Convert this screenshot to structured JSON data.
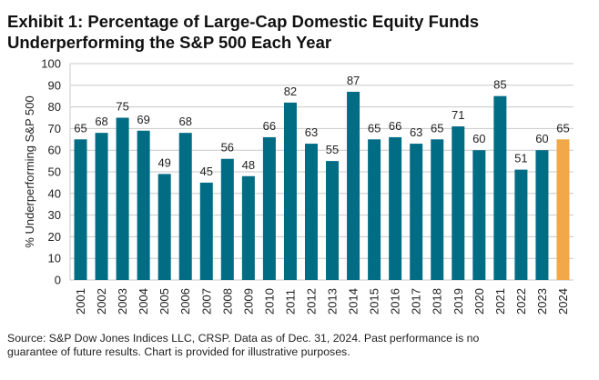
{
  "header": {
    "title_line1": "Exhibit 1: Percentage of Large-Cap Domestic Equity Funds",
    "title_line2": "Underperforming the S&P 500 Each Year"
  },
  "footer": {
    "source_line1": "Source: S&P Dow Jones Indices LLC, CRSP.  Data as of Dec. 31, 2024.  Past performance is no",
    "source_line2": "guarantee of future results.  Chart is provided for illustrative purposes."
  },
  "chart_data": {
    "type": "bar",
    "title": "Exhibit 1: Percentage of Large-Cap Domestic Equity Funds Underperforming the S&P 500 Each Year",
    "xlabel": "",
    "ylabel": "% Underperforming S&P 500",
    "ylim": [
      0,
      100
    ],
    "yticks": [
      0,
      10,
      20,
      30,
      40,
      50,
      60,
      70,
      80,
      90,
      100
    ],
    "grid": true,
    "categories": [
      "2001",
      "2002",
      "2003",
      "2004",
      "2005",
      "2006",
      "2007",
      "2008",
      "2009",
      "2010",
      "2011",
      "2012",
      "2013",
      "2014",
      "2015",
      "2016",
      "2017",
      "2018",
      "2019",
      "2020",
      "2021",
      "2022",
      "2023",
      "2024"
    ],
    "values": [
      65,
      68,
      75,
      69,
      49,
      68,
      45,
      56,
      48,
      66,
      82,
      63,
      55,
      87,
      65,
      66,
      63,
      65,
      71,
      60,
      85,
      51,
      60,
      65
    ],
    "colors": {
      "default": "#006D85",
      "highlight": "#F0A848",
      "grid": "#C8C8C8"
    },
    "highlight_category": "2024"
  }
}
